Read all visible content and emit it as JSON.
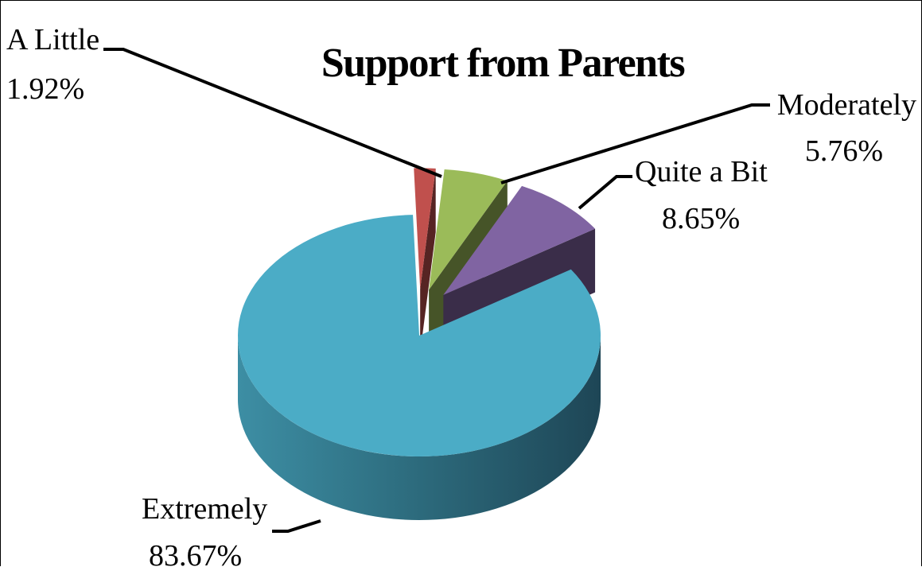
{
  "chart_data": {
    "type": "pie",
    "style": "3d-exploded",
    "title": "Support from Parents",
    "slices": [
      {
        "label": "A Little",
        "value_label": "1.92%",
        "value": 1.92,
        "color": "#c0504d"
      },
      {
        "label": "Moderately",
        "value_label": "5.76%",
        "value": 5.76,
        "color": "#9bbb59"
      },
      {
        "label": "Quite a Bit",
        "value_label": "8.65%",
        "value": 8.65,
        "color": "#8064a2"
      },
      {
        "label": "Extremely",
        "value_label": "83.67%",
        "value": 83.67,
        "color": "#4bacc6"
      }
    ]
  }
}
